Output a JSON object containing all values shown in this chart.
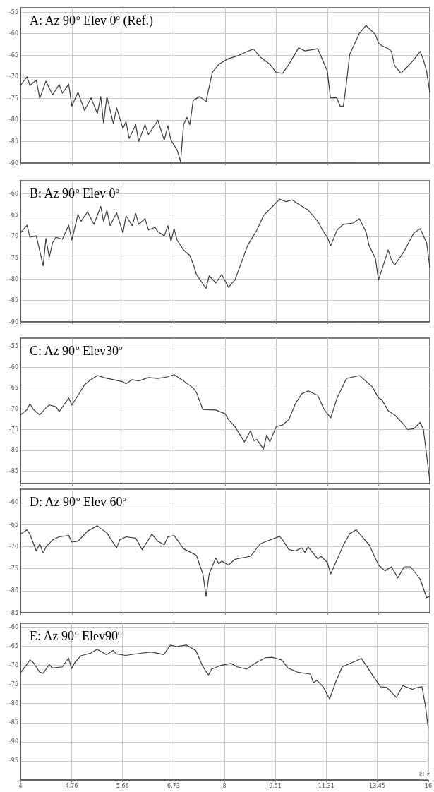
{
  "chart_data": [
    {
      "type": "line",
      "title": "A: Az 90$^{o}$ Elev 0$^{o}$ (Ref.)",
      "log": "x",
      "grid": true,
      "marker": "none",
      "tick_labels": "y",
      "color": "#3a3a3a",
      "xlim": [
        4,
        16
      ],
      "xticks": [
        4,
        4.76,
        5.66,
        6.73,
        8,
        9.51,
        11.31,
        13.45,
        16
      ],
      "ylim": [
        -90,
        -54
      ],
      "yticks": [
        -55,
        -60,
        -65,
        -70,
        -75,
        -80,
        -85,
        -90
      ],
      "x": [
        4.0,
        4.09,
        4.13,
        4.18,
        4.22,
        4.27,
        4.36,
        4.46,
        4.56,
        4.61,
        4.71,
        4.76,
        4.86,
        4.97,
        5.08,
        5.19,
        5.25,
        5.3,
        5.36,
        5.48,
        5.54,
        5.66,
        5.72,
        5.78,
        5.91,
        5.97,
        6.1,
        6.17,
        6.37,
        6.51,
        6.59,
        6.66,
        6.8,
        6.88,
        6.95,
        7.03,
        7.1,
        7.18,
        7.34,
        7.5,
        7.66,
        7.83,
        8.09,
        8.36,
        8.63,
        8.81,
        9.01,
        9.31,
        9.51,
        9.72,
        9.93,
        10.26,
        10.48,
        10.95,
        11.31,
        11.43,
        11.68,
        11.81,
        11.94,
        12.07,
        12.2,
        12.61,
        12.89,
        13.31,
        13.45,
        13.6,
        13.9,
        14.05,
        14.2,
        14.51,
        14.83,
        15.15,
        15.49,
        15.66,
        15.83,
        16.0
      ],
      "values": [
        -72,
        -70,
        -72,
        -71.3,
        -70.8,
        -75,
        -71,
        -74.2,
        -71.8,
        -73.8,
        -71.7,
        -76.8,
        -73.6,
        -77.8,
        -74.9,
        -78.5,
        -74.6,
        -80.7,
        -74.6,
        -80.9,
        -77.2,
        -82,
        -80.4,
        -84.3,
        -81.1,
        -85,
        -81.1,
        -83.4,
        -80.1,
        -84.7,
        -81.4,
        -84.7,
        -87,
        -89.7,
        -81.1,
        -79.4,
        -81.1,
        -75.5,
        -74.6,
        -75.7,
        -69,
        -67.1,
        -65.8,
        -65.1,
        -64.1,
        -63.6,
        -65.4,
        -67.1,
        -69,
        -69.2,
        -67.1,
        -63.3,
        -64,
        -63.5,
        -68.7,
        -74.9,
        -74.9,
        -76.8,
        -76.8,
        -71.3,
        -64.8,
        -59.9,
        -58.1,
        -60.2,
        -62.2,
        -62.8,
        -63.5,
        -64.1,
        -67.4,
        -69.2,
        -67.7,
        -66.1,
        -64.1,
        -66.1,
        -68.7,
        -73.6
      ]
    },
    {
      "type": "line",
      "title": "B: Az 90$^{o}$ Elev 0$^{o}$",
      "log": "x",
      "grid": true,
      "marker": "none",
      "tick_labels": "y",
      "color": "#3a3a3a",
      "xlim": [
        4,
        16
      ],
      "xticks": [
        4,
        4.76,
        5.66,
        6.73,
        8,
        9.51,
        11.31,
        13.45,
        16
      ],
      "ylim": [
        -90,
        -57
      ],
      "yticks": [
        -60,
        -65,
        -70,
        -75,
        -80,
        -85,
        -90
      ],
      "x": [
        4.0,
        4.09,
        4.13,
        4.22,
        4.32,
        4.36,
        4.41,
        4.46,
        4.51,
        4.61,
        4.71,
        4.76,
        4.86,
        4.91,
        5.02,
        5.13,
        5.25,
        5.3,
        5.36,
        5.42,
        5.54,
        5.66,
        5.72,
        5.84,
        5.91,
        5.97,
        6.1,
        6.17,
        6.31,
        6.37,
        6.51,
        6.59,
        6.66,
        6.73,
        6.8,
        6.95,
        7.1,
        7.18,
        7.26,
        7.5,
        7.58,
        7.75,
        7.91,
        8.09,
        8.27,
        8.45,
        8.63,
        8.91,
        9.11,
        9.41,
        9.62,
        9.83,
        10.04,
        10.26,
        10.6,
        10.95,
        11.19,
        11.31,
        11.44,
        11.69,
        11.94,
        12.34,
        12.61,
        12.89,
        13.03,
        13.31,
        13.45,
        13.9,
        14.05,
        14.21,
        14.67,
        15.16,
        15.49,
        15.83,
        16.0
      ],
      "values": [
        -69.2,
        -67.4,
        -70.2,
        -69.9,
        -76.9,
        -70.5,
        -74.9,
        -71.5,
        -70.2,
        -70.7,
        -67.4,
        -70.9,
        -64.9,
        -66.5,
        -64.3,
        -67.2,
        -63,
        -66.5,
        -63.9,
        -67.5,
        -64.5,
        -69.2,
        -65.2,
        -67.5,
        -64.7,
        -67.2,
        -65.9,
        -68.5,
        -67.9,
        -68.9,
        -69.9,
        -67.5,
        -71.2,
        -68.2,
        -70.9,
        -73.2,
        -74.5,
        -76.5,
        -78.9,
        -82.2,
        -79.2,
        -80.9,
        -78.9,
        -81.9,
        -80.2,
        -76.2,
        -72.2,
        -68.5,
        -65.2,
        -62.9,
        -61.3,
        -61.9,
        -61.5,
        -62.5,
        -63.9,
        -66.5,
        -69.2,
        -70.2,
        -72.2,
        -68.5,
        -67.2,
        -66.9,
        -65.9,
        -68.9,
        -72.2,
        -75.2,
        -80.2,
        -73.2,
        -75.5,
        -76.7,
        -73.5,
        -69.2,
        -68.2,
        -71.5,
        -77.2
      ]
    },
    {
      "type": "line",
      "title": "C: Az 90$^{o}$ Elev30$^{o}$",
      "log": "x",
      "grid": true,
      "marker": "none",
      "tick_labels": "y",
      "color": "#3a3a3a",
      "xlim": [
        4,
        16
      ],
      "xticks": [
        4,
        4.76,
        5.66,
        6.73,
        8,
        9.51,
        11.31,
        13.45,
        16
      ],
      "ylim": [
        -88,
        -53
      ],
      "yticks": [
        -55,
        -60,
        -65,
        -70,
        -75,
        -80,
        -85
      ],
      "x": [
        4.0,
        4.09,
        4.13,
        4.18,
        4.27,
        4.36,
        4.41,
        4.51,
        4.56,
        4.66,
        4.71,
        4.76,
        4.86,
        4.97,
        5.08,
        5.19,
        5.3,
        5.48,
        5.66,
        5.72,
        5.84,
        5.97,
        6.17,
        6.37,
        6.59,
        6.73,
        6.95,
        7.18,
        7.26,
        7.42,
        7.75,
        8.0,
        8.09,
        8.27,
        8.54,
        8.72,
        8.82,
        8.91,
        9.11,
        9.21,
        9.31,
        9.51,
        9.72,
        9.93,
        10.15,
        10.37,
        10.6,
        10.95,
        11.19,
        11.44,
        11.69,
        12.07,
        12.61,
        13.17,
        13.45,
        13.6,
        13.9,
        14.21,
        14.67,
        14.84,
        15.16,
        15.49,
        15.66,
        16.0
      ],
      "values": [
        -71.5,
        -70.2,
        -68.8,
        -70.2,
        -71.5,
        -69.8,
        -69.1,
        -69.5,
        -70.7,
        -68.5,
        -67.4,
        -69.1,
        -66.8,
        -64.2,
        -63,
        -62,
        -62.5,
        -63,
        -63.5,
        -64,
        -63,
        -63.3,
        -62.5,
        -62.7,
        -62.3,
        -61.8,
        -63.3,
        -65,
        -66.1,
        -70.2,
        -70.3,
        -71.2,
        -72.6,
        -74.3,
        -78,
        -75.3,
        -77.7,
        -77.4,
        -79.7,
        -76.3,
        -78,
        -74.3,
        -73.9,
        -72.6,
        -68.8,
        -66.4,
        -65.7,
        -66.8,
        -70.2,
        -72.2,
        -67.4,
        -62.7,
        -62,
        -64.7,
        -67.4,
        -67.8,
        -70.5,
        -71.5,
        -73.9,
        -75,
        -74.8,
        -73.3,
        -75,
        -87.3
      ]
    },
    {
      "type": "line",
      "title": "D: Az 90$^{o}$ Elev 60$^{o}$",
      "log": "x",
      "grid": true,
      "marker": "none",
      "tick_labels": "y",
      "color": "#3a3a3a",
      "xlim": [
        4,
        16
      ],
      "xticks": [
        4,
        4.76,
        5.66,
        6.73,
        8,
        9.51,
        11.31,
        13.45,
        16
      ],
      "ylim": [
        -85,
        -57
      ],
      "yticks": [
        -60,
        -65,
        -70,
        -75,
        -80,
        -85
      ],
      "x": [
        4.0,
        4.09,
        4.13,
        4.22,
        4.27,
        4.32,
        4.36,
        4.46,
        4.56,
        4.71,
        4.76,
        4.86,
        4.97,
        5.02,
        5.19,
        5.25,
        5.36,
        5.42,
        5.54,
        5.6,
        5.72,
        5.91,
        6.04,
        6.17,
        6.24,
        6.37,
        6.51,
        6.59,
        6.73,
        6.95,
        7.26,
        7.34,
        7.42,
        7.5,
        7.58,
        7.75,
        7.83,
        7.91,
        8.09,
        8.27,
        8.45,
        8.72,
        9.01,
        9.21,
        9.62,
        9.72,
        9.93,
        10.15,
        10.37,
        10.48,
        10.6,
        10.95,
        11.07,
        11.31,
        11.44,
        11.94,
        12.2,
        12.47,
        12.89,
        13.03,
        13.45,
        13.75,
        14.05,
        14.36,
        14.67,
        14.99,
        15.49,
        15.83,
        16.0
      ],
      "values": [
        -67.2,
        -66.2,
        -67.2,
        -71,
        -69.4,
        -71.5,
        -70.1,
        -68.5,
        -67.8,
        -67.5,
        -69,
        -68.8,
        -67.2,
        -66.5,
        -65.3,
        -65.9,
        -66.9,
        -68.1,
        -70.3,
        -68.5,
        -67.8,
        -68.1,
        -70.7,
        -68.5,
        -67.2,
        -68.8,
        -69.6,
        -67.8,
        -67.5,
        -70.5,
        -72,
        -74.2,
        -76.2,
        -81.3,
        -76.2,
        -72.6,
        -73.9,
        -73.3,
        -74.2,
        -72.9,
        -72.6,
        -72.2,
        -69.4,
        -68.8,
        -67.7,
        -68.5,
        -70.7,
        -71,
        -70.3,
        -71.3,
        -70.1,
        -72.8,
        -72.2,
        -73.6,
        -76.2,
        -69.7,
        -67.1,
        -66.2,
        -68.8,
        -69.6,
        -74.2,
        -75.5,
        -74.6,
        -77.1,
        -74.6,
        -74.6,
        -77.4,
        -81.6,
        -81.3
      ]
    },
    {
      "type": "line",
      "title": "E: Az 90$^{o}$ Elev90$^{o}$",
      "xlabel": "kHz",
      "log": "x",
      "grid": true,
      "marker": "none",
      "color": "#3a3a3a",
      "xlim": [
        4,
        16
      ],
      "xticks": [
        4,
        4.76,
        5.66,
        6.73,
        8,
        9.51,
        11.31,
        13.45,
        16
      ],
      "ylim": [
        -100,
        -59
      ],
      "yticks": [
        -60,
        -65,
        -70,
        -75,
        -80,
        -85,
        -90,
        -95
      ],
      "x": [
        4.0,
        4.09,
        4.13,
        4.18,
        4.27,
        4.32,
        4.41,
        4.46,
        4.61,
        4.71,
        4.76,
        4.81,
        4.91,
        5.08,
        5.19,
        5.36,
        5.48,
        5.54,
        5.72,
        6.04,
        6.24,
        6.51,
        6.66,
        6.8,
        7.03,
        7.26,
        7.42,
        7.5,
        7.58,
        7.66,
        7.91,
        8.18,
        8.36,
        8.63,
        8.91,
        9.21,
        9.41,
        9.72,
        9.93,
        10.26,
        10.72,
        10.83,
        10.95,
        11.19,
        11.44,
        11.69,
        11.94,
        12.34,
        12.75,
        13.03,
        13.31,
        13.6,
        13.9,
        14.36,
        14.67,
        15.16,
        15.32,
        15.66,
        15.83,
        16.0
      ],
      "values": [
        -72,
        -69.7,
        -68.6,
        -69.3,
        -71.8,
        -72.1,
        -69.8,
        -70.7,
        -70.4,
        -68.1,
        -70.9,
        -69.3,
        -67.5,
        -66.8,
        -65.8,
        -67.2,
        -66.1,
        -67,
        -67.4,
        -66.8,
        -66.5,
        -67.2,
        -64.7,
        -65.1,
        -64.7,
        -66.1,
        -70,
        -71.4,
        -72.5,
        -71,
        -70,
        -69.5,
        -70.4,
        -71,
        -69.3,
        -68,
        -67.9,
        -68.6,
        -70.7,
        -71.8,
        -72.3,
        -74.6,
        -73.9,
        -75.6,
        -78.8,
        -74.2,
        -70.4,
        -69.3,
        -68.2,
        -70.7,
        -73.2,
        -75.6,
        -75.8,
        -78.4,
        -75.3,
        -76.3,
        -75.9,
        -75.6,
        -80.2,
        -86.5
      ]
    }
  ]
}
